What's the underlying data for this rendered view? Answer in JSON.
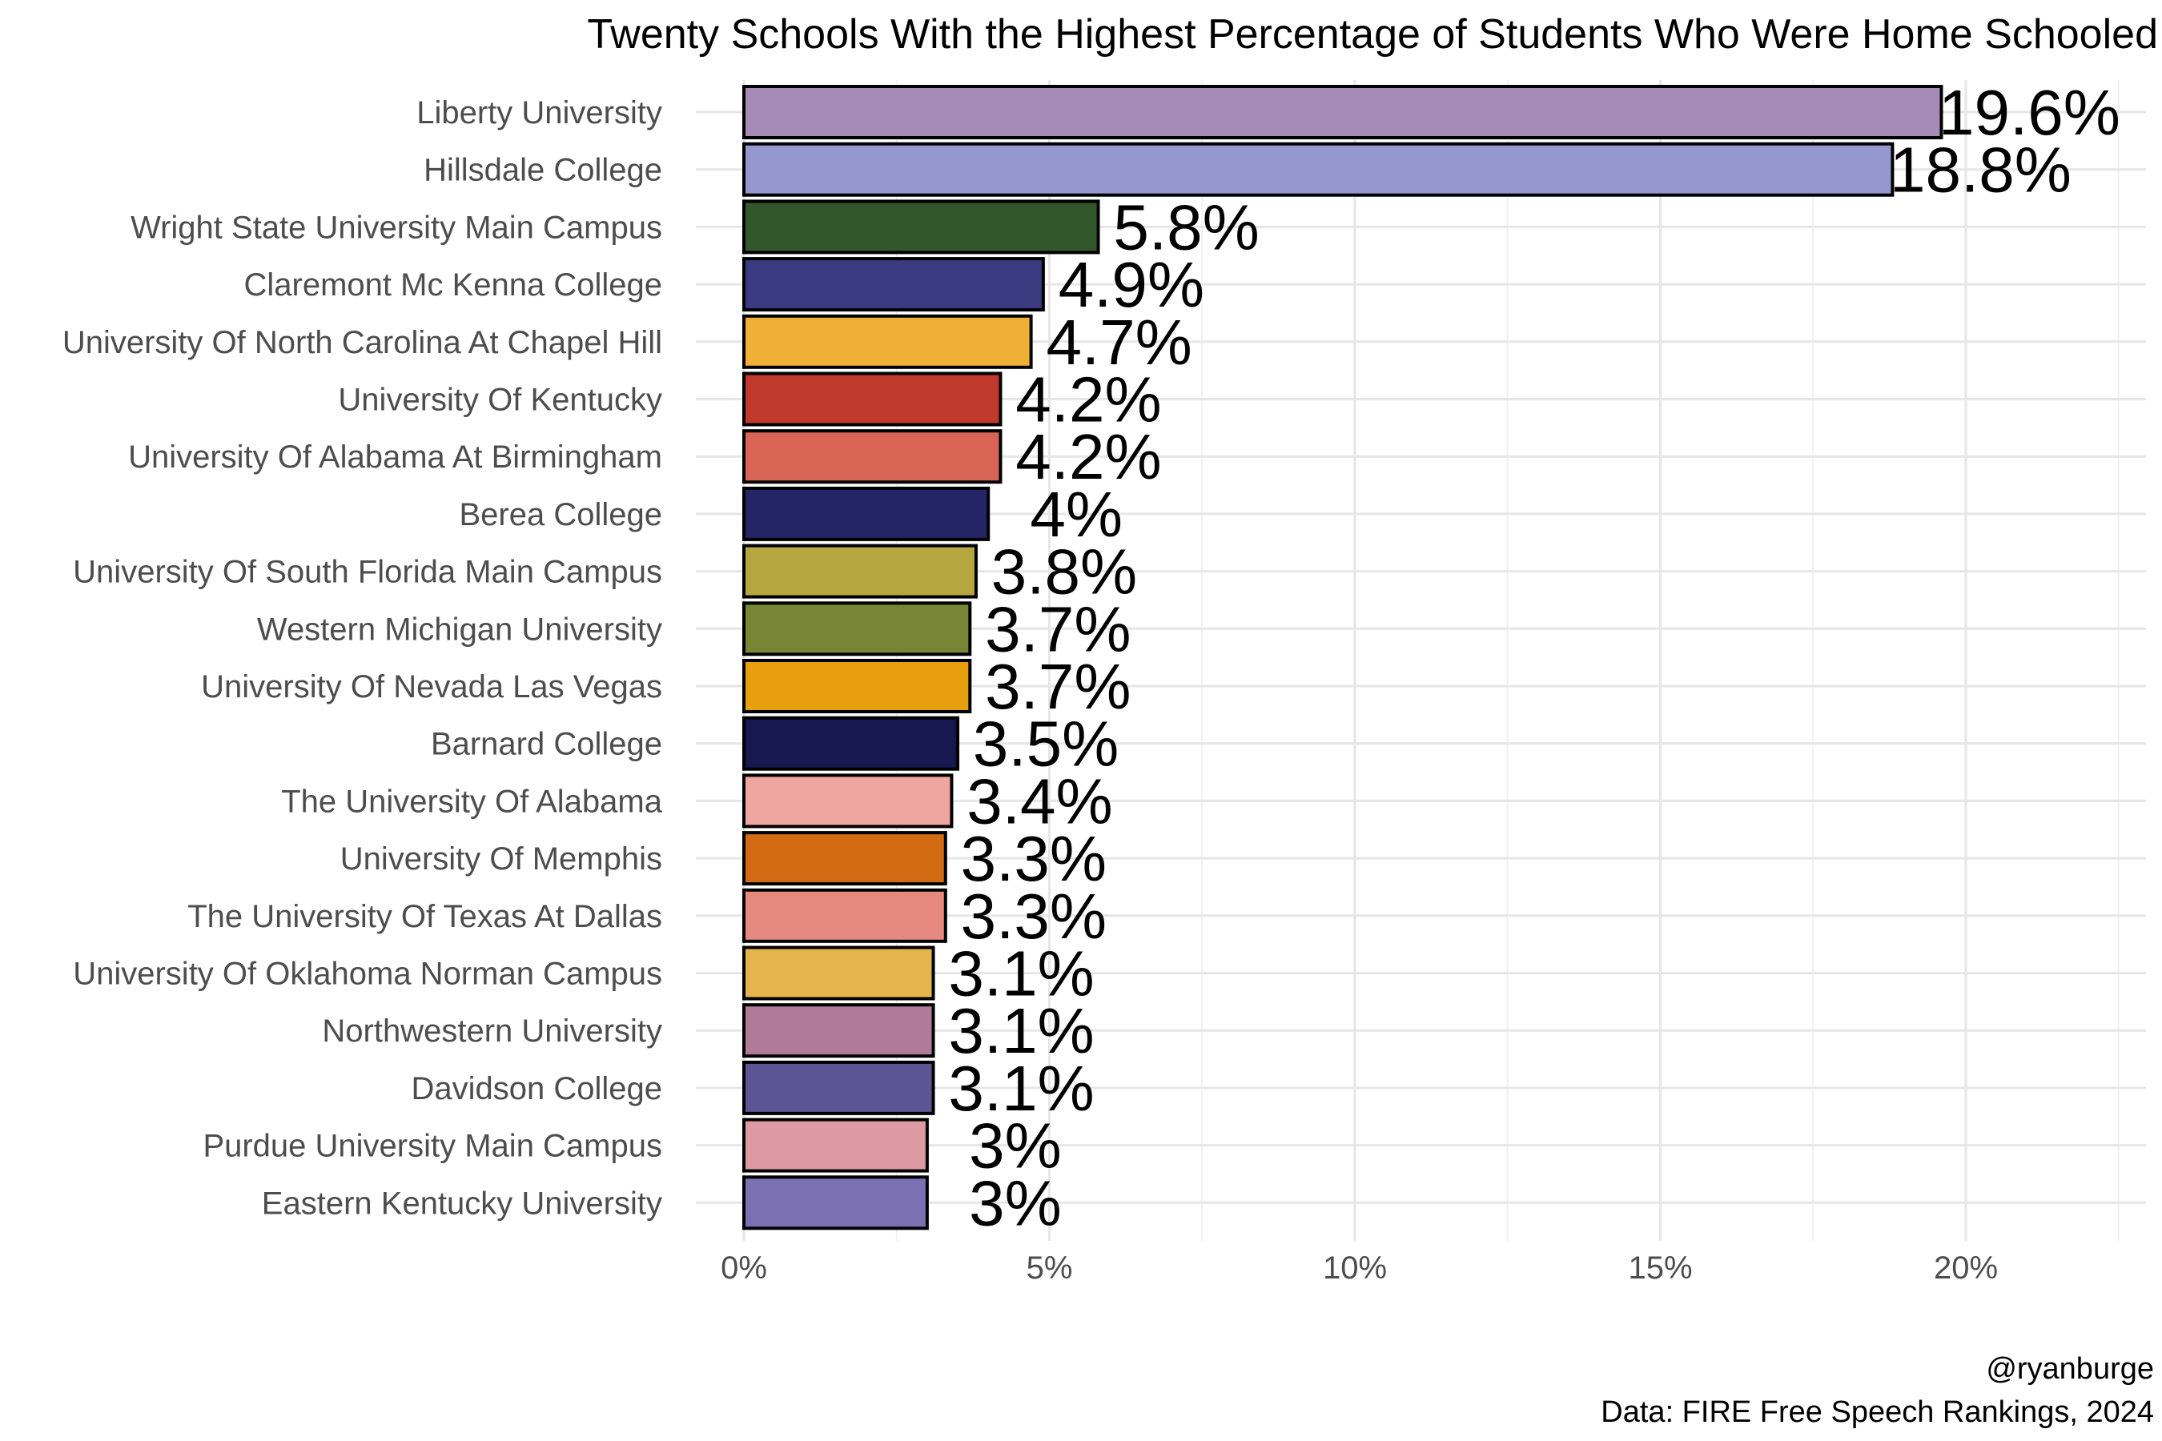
{
  "chart_data": {
    "type": "bar",
    "orientation": "horizontal",
    "title": "Twenty Schools With the Highest Percentage of Students Who Were Home Schooled",
    "xlabel": "",
    "ylabel": "",
    "xlim": [
      0,
      22.5
    ],
    "grid": true,
    "x_ticks": [
      {
        "value": 0,
        "label": "0%"
      },
      {
        "value": 5,
        "label": "5%"
      },
      {
        "value": 10,
        "label": "10%"
      },
      {
        "value": 15,
        "label": "15%"
      },
      {
        "value": 20,
        "label": "20%"
      }
    ],
    "bars": [
      {
        "category": "Liberty University",
        "value": 19.6,
        "label": "19.6%",
        "color": "#A68BB8"
      },
      {
        "category": "Hillsdale College",
        "value": 18.8,
        "label": "18.8%",
        "color": "#9597CE"
      },
      {
        "category": "Wright State University Main Campus",
        "value": 5.8,
        "label": "5.8%",
        "color": "#32572B"
      },
      {
        "category": "Claremont Mc Kenna College",
        "value": 4.9,
        "label": "4.9%",
        "color": "#393A80"
      },
      {
        "category": "University Of North Carolina At Chapel Hill",
        "value": 4.7,
        "label": "4.7%",
        "color": "#F0B036"
      },
      {
        "category": "University Of Kentucky",
        "value": 4.2,
        "label": "4.2%",
        "color": "#C0392B"
      },
      {
        "category": "University Of Alabama At Birmingham",
        "value": 4.2,
        "label": "4.2%",
        "color": "#D96557"
      },
      {
        "category": "Berea College",
        "value": 4.0,
        "label": "4%",
        "color": "#242565"
      },
      {
        "category": "University Of South Florida Main Campus",
        "value": 3.8,
        "label": "3.8%",
        "color": "#B5A63F"
      },
      {
        "category": "Western Michigan University",
        "value": 3.7,
        "label": "3.7%",
        "color": "#788535"
      },
      {
        "category": "University Of Nevada Las Vegas",
        "value": 3.7,
        "label": "3.7%",
        "color": "#E89F0E"
      },
      {
        "category": "Barnard College",
        "value": 3.5,
        "label": "3.5%",
        "color": "#171850"
      },
      {
        "category": "The University Of Alabama",
        "value": 3.4,
        "label": "3.4%",
        "color": "#F0A6A0"
      },
      {
        "category": "University Of Memphis",
        "value": 3.3,
        "label": "3.3%",
        "color": "#D36A14"
      },
      {
        "category": "The University Of Texas At Dallas",
        "value": 3.3,
        "label": "3.3%",
        "color": "#E68A80"
      },
      {
        "category": "University Of Oklahoma Norman Campus",
        "value": 3.1,
        "label": "3.1%",
        "color": "#E3B54C"
      },
      {
        "category": "Northwestern University",
        "value": 3.1,
        "label": "3.1%",
        "color": "#B07A99"
      },
      {
        "category": "Davidson College",
        "value": 3.1,
        "label": "3.1%",
        "color": "#5D5495"
      },
      {
        "category": "Purdue University Main Campus",
        "value": 3.0,
        "label": "3%",
        "color": "#DE9AA3"
      },
      {
        "category": "Eastern Kentucky University",
        "value": 3.0,
        "label": "3%",
        "color": "#7A70B2"
      }
    ]
  },
  "caption": {
    "author": "@ryanburge",
    "source": "Data: FIRE Free Speech Rankings, 2024"
  }
}
